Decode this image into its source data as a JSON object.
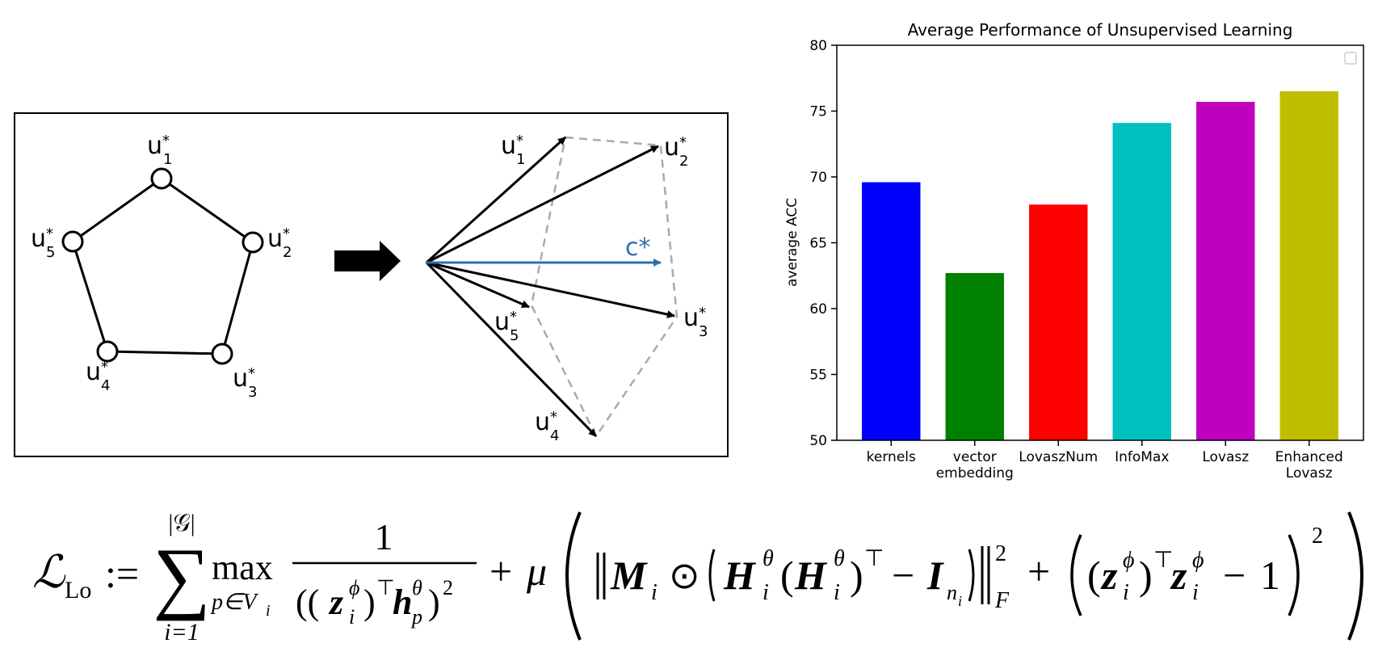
{
  "diagram": {
    "labels": {
      "u1": {
        "base": "u",
        "sup": "*",
        "sub": "1"
      },
      "u2": {
        "base": "u",
        "sup": "*",
        "sub": "2"
      },
      "u3": {
        "base": "u",
        "sup": "*",
        "sub": "3"
      },
      "u4": {
        "base": "u",
        "sup": "*",
        "sub": "4"
      },
      "u5": {
        "base": "u",
        "sup": "*",
        "sub": "5"
      },
      "c": "c*"
    },
    "colors": {
      "center_vector": "#2e6fb3",
      "hull": "#aaaaaa",
      "ink": "#000000"
    }
  },
  "chart_data": {
    "type": "bar",
    "title": "Average Performance of Unsupervised Learning",
    "xlabel": "",
    "ylabel": "average ACC",
    "categories": [
      "kernels",
      "vector\nembedding",
      "LovaszNum",
      "InfoMax",
      "Lovasz",
      "Enhanced\nLovasz"
    ],
    "values": [
      69.6,
      62.7,
      67.9,
      74.1,
      75.7,
      76.5
    ],
    "colors": [
      "#0000ff",
      "#008000",
      "#ff0000",
      "#00bfbf",
      "#bf00bf",
      "#bfbf00"
    ],
    "ylim": [
      50,
      80
    ],
    "yticks": [
      50,
      55,
      60,
      65,
      70,
      75,
      80
    ],
    "grid": false,
    "legend": "top-right (empty)"
  },
  "formula": {
    "lhs": "ℒ",
    "lhs_sub": "Lo",
    "assign": ":=",
    "sum": "∑",
    "sum_upper": "|𝒢|",
    "sum_lower": "i=1",
    "max": "max",
    "max_sub": "p∈V",
    "numerator": "1",
    "plus": "+",
    "mu": "μ",
    "frob_sub": "F",
    "square": "2"
  }
}
